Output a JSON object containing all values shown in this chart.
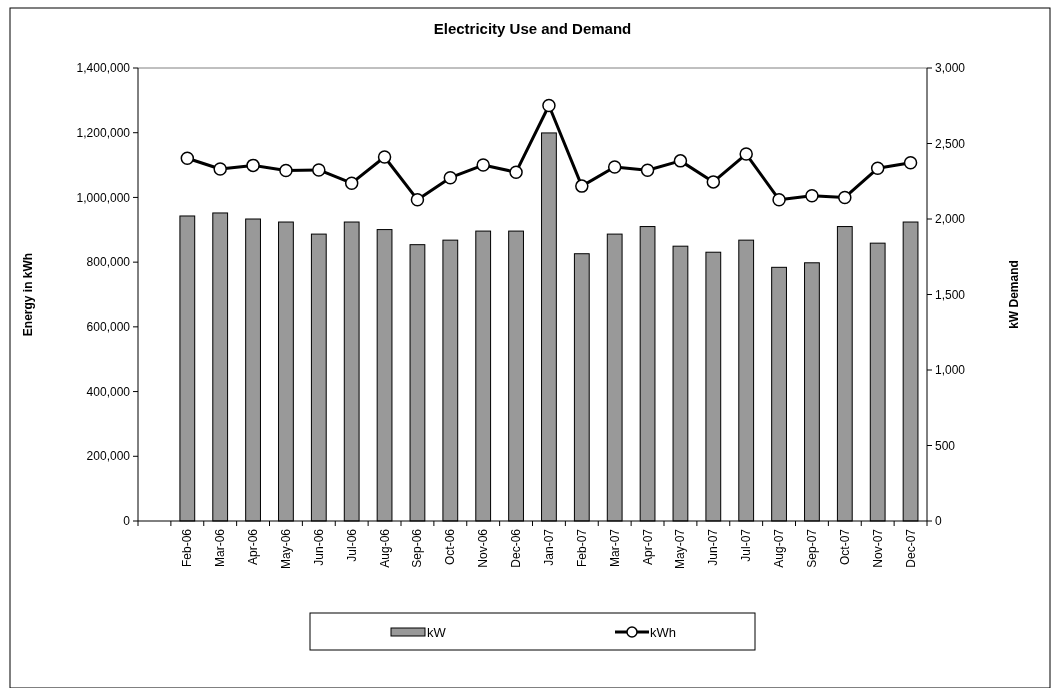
{
  "chart_data": {
    "type": "bar",
    "title": "Electricity Use and Demand",
    "ylabel": "Energy in kWh",
    "y2label": "kW Demand",
    "categories": [
      null,
      "Feb-06",
      "Mar-06",
      "Apr-06",
      "May-06",
      "Jun-06",
      "Jul-06",
      "Aug-06",
      "Sep-06",
      "Oct-06",
      "Nov-06",
      "Dec-06",
      "Jan-07",
      "Feb-07",
      "Mar-07",
      "Apr-07",
      "May-07",
      "Jun-07",
      "Jul-07",
      "Aug-07",
      "Sep-07",
      "Oct-07",
      "Nov-07",
      "Dec-07"
    ],
    "series": [
      {
        "name": "kW",
        "axis": "y2",
        "color": "#999999",
        "values": [
          null,
          2020,
          2040,
          2000,
          1980,
          1900,
          1980,
          1930,
          1830,
          1860,
          1920,
          1920,
          2570,
          1770,
          1900,
          1950,
          1820,
          1780,
          1860,
          1680,
          1710,
          1950,
          1840,
          1980
        ]
      },
      {
        "name": "kWh",
        "type": "line",
        "axis": "y",
        "color": "#000000",
        "marker": "circle",
        "line_style": "solid",
        "values": [
          null,
          1121000,
          1088000,
          1099000,
          1083000,
          1085000,
          1044000,
          1125000,
          993000,
          1061000,
          1100000,
          1078000,
          1284000,
          1035000,
          1094000,
          1084000,
          1113000,
          1048000,
          1134000,
          993000,
          1005000,
          1000000,
          1090000,
          1107000
        ]
      }
    ],
    "ylim": [
      0,
      1400000
    ],
    "yticks": [
      {
        "value": 0,
        "label": "0"
      },
      {
        "value": 200000,
        "label": "200,000"
      },
      {
        "value": 400000,
        "label": "400,000"
      },
      {
        "value": 600000,
        "label": "600,000"
      },
      {
        "value": 800000,
        "label": "800,000"
      },
      {
        "value": 1000000,
        "label": "1,000,000"
      },
      {
        "value": 1200000,
        "label": "1,200,000"
      },
      {
        "value": 1400000,
        "label": "1,400,000"
      }
    ],
    "y2lim": [
      0,
      3000
    ],
    "y2ticks": [
      {
        "value": 0,
        "label": "0"
      },
      {
        "value": 500,
        "label": "500"
      },
      {
        "value": 1000,
        "label": "1,000"
      },
      {
        "value": 1500,
        "label": "1,500"
      },
      {
        "value": 2000,
        "label": "2,000"
      },
      {
        "value": 2500,
        "label": "2,500"
      },
      {
        "value": 3000,
        "label": "3,000"
      }
    ],
    "grid": false,
    "legend": "bottom"
  }
}
